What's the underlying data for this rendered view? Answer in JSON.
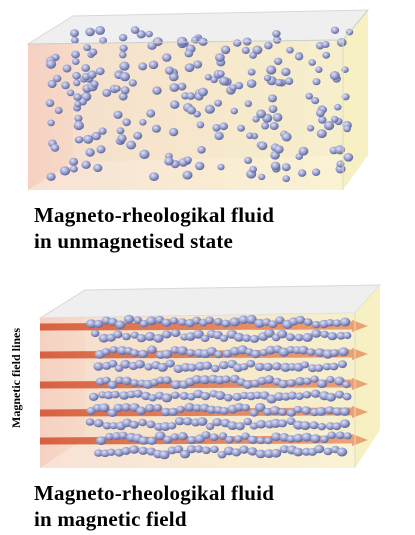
{
  "captions": {
    "top_line1": "Magneto-rheologikal fluid",
    "top_line2": "in unmagnetised state",
    "bottom_line1": "Magneto-rheologikal fluid",
    "bottom_line2": "in magnetic field"
  },
  "field_lines_label": "Magnetic field lines",
  "colors": {
    "particle": "#8e95c6",
    "particle_highlight": "#d6daf3",
    "cube_front": "#f4e6cf",
    "cube_left": "#f2b6b2",
    "cube_top": "#efefef",
    "cube_right": "#f7f2c4",
    "field_arrow": "#c9542f"
  }
}
